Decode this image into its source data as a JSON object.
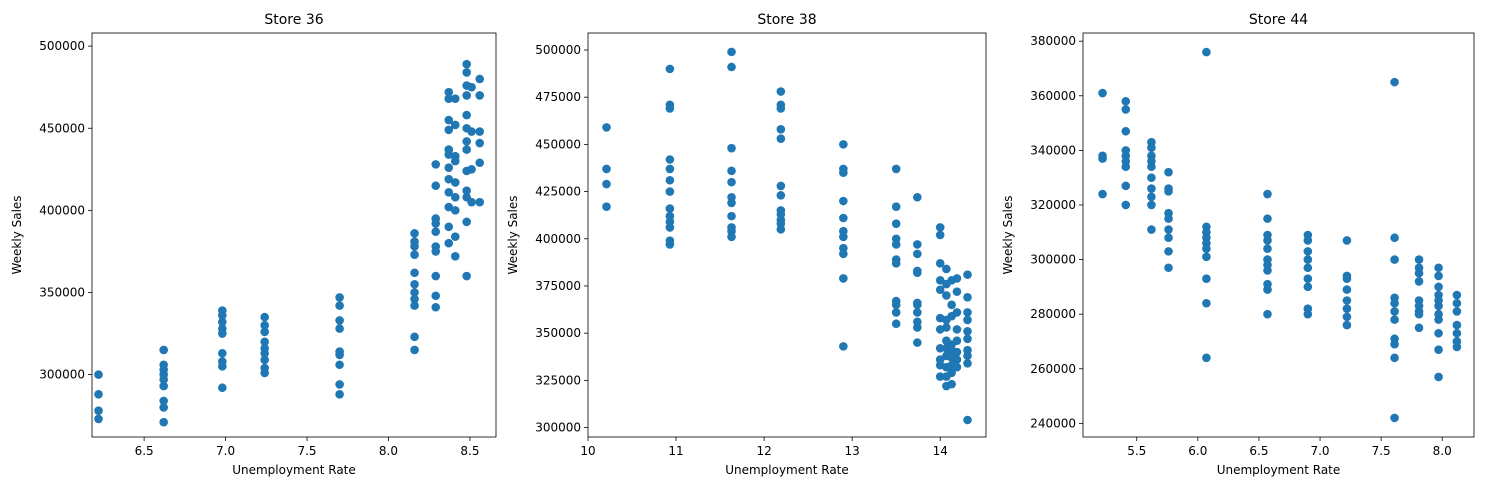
{
  "chart_data": [
    {
      "type": "scatter",
      "title": "Store 36",
      "xlabel": "Unemployment Rate",
      "ylabel": "Weekly Sales",
      "xlim": [
        6.18,
        8.66
      ],
      "ylim": [
        262000,
        508000
      ],
      "xticks": [
        6.5,
        7.0,
        7.5,
        8.0,
        8.5
      ],
      "xtick_labels": [
        "6.5",
        "7.0",
        "7.5",
        "8.0",
        "8.5"
      ],
      "yticks": [
        300000,
        350000,
        400000,
        450000,
        500000
      ],
      "ytick_labels": [
        "300000",
        "350000",
        "400000",
        "450000",
        "500000"
      ],
      "color": "#1f77b4",
      "groups": [
        {
          "x": 6.22,
          "y": [
            300000,
            288000,
            278000,
            273000
          ]
        },
        {
          "x": 6.62,
          "y": [
            315000,
            306000,
            303000,
            300000,
            297000,
            293000,
            284000,
            280000,
            271000
          ]
        },
        {
          "x": 6.98,
          "y": [
            339000,
            336000,
            332000,
            328000,
            325000,
            313000,
            308000,
            305000,
            292000
          ]
        },
        {
          "x": 7.24,
          "y": [
            335000,
            330000,
            326000,
            320000,
            316000,
            313000,
            309000,
            304000,
            301000
          ]
        },
        {
          "x": 7.7,
          "y": [
            347000,
            342000,
            333000,
            328000,
            314000,
            312000,
            306000,
            294000,
            288000
          ]
        },
        {
          "x": 8.16,
          "y": [
            386000,
            381000,
            378000,
            373000,
            362000,
            355000,
            350000,
            346000,
            342000,
            323000,
            315000
          ]
        },
        {
          "x": 8.29,
          "y": [
            428000,
            415000,
            395000,
            392000,
            387000,
            378000,
            375000,
            360000,
            348000,
            341000
          ]
        },
        {
          "x": 8.37,
          "y": [
            472000,
            468000,
            455000,
            449000,
            437000,
            434000,
            426000,
            419000,
            411000,
            402000,
            390000,
            380000
          ]
        },
        {
          "x": 8.41,
          "y": [
            468000,
            452000,
            433000,
            430000,
            417000,
            408000,
            400000,
            384000,
            372000
          ]
        },
        {
          "x": 8.48,
          "y": [
            489000,
            484000,
            476000,
            470000,
            458000,
            450000,
            442000,
            437000,
            424000,
            412000,
            408000,
            393000,
            360000
          ]
        },
        {
          "x": 8.51,
          "y": [
            475000,
            448000,
            425000,
            405000
          ]
        },
        {
          "x": 8.56,
          "y": [
            480000,
            470000,
            448000,
            441000,
            429000,
            405000
          ]
        }
      ]
    },
    {
      "type": "scatter",
      "title": "Store 38",
      "xlabel": "Unemployment Rate",
      "ylabel": "Weekly Sales",
      "xlim": [
        10.0,
        14.52
      ],
      "ylim": [
        295000,
        509000
      ],
      "xticks": [
        10,
        11,
        12,
        13,
        14
      ],
      "xtick_labels": [
        "10",
        "11",
        "12",
        "13",
        "14"
      ],
      "yticks": [
        300000,
        325000,
        350000,
        375000,
        400000,
        425000,
        450000,
        475000,
        500000
      ],
      "ytick_labels": [
        "300000",
        "325000",
        "350000",
        "375000",
        "400000",
        "425000",
        "450000",
        "475000",
        "500000"
      ],
      "color": "#1f77b4",
      "groups": [
        {
          "x": 10.21,
          "y": [
            459000,
            437000,
            429000,
            417000
          ]
        },
        {
          "x": 10.93,
          "y": [
            490000,
            471000,
            469000,
            442000,
            437000,
            431000,
            425000,
            416000,
            412000,
            409000,
            406000,
            399000,
            397000
          ]
        },
        {
          "x": 11.63,
          "y": [
            499000,
            491000,
            448000,
            436000,
            430000,
            422000,
            419000,
            412000,
            406000,
            404000,
            401000
          ]
        },
        {
          "x": 12.19,
          "y": [
            478000,
            471000,
            469000,
            458000,
            453000,
            428000,
            423000,
            415000,
            413000,
            410000,
            408000,
            405000
          ]
        },
        {
          "x": 12.9,
          "y": [
            450000,
            437000,
            435000,
            420000,
            411000,
            404000,
            401000,
            395000,
            392000,
            379000,
            343000
          ]
        },
        {
          "x": 13.5,
          "y": [
            437000,
            417000,
            408000,
            400000,
            397000,
            389000,
            387000,
            367000,
            365000,
            361000,
            355000
          ]
        },
        {
          "x": 13.74,
          "y": [
            422000,
            397000,
            392000,
            383000,
            382000,
            366000,
            365000,
            361000,
            356000,
            353000,
            345000
          ]
        },
        {
          "x": 14.0,
          "y": [
            406000,
            402000,
            387000,
            378000,
            373000,
            358000,
            352000,
            342000,
            336000,
            333000,
            327000
          ]
        },
        {
          "x": 14.07,
          "y": [
            384000,
            376000,
            370000,
            357000,
            353000,
            346000,
            342000,
            338000,
            332000,
            327000,
            322000
          ]
        },
        {
          "x": 14.13,
          "y": [
            378000,
            365000,
            359000,
            344000,
            341000,
            337000,
            333000,
            329000,
            323000
          ]
        },
        {
          "x": 14.19,
          "y": [
            379000,
            372000,
            361000,
            352000,
            346000,
            340000,
            336000,
            332000
          ]
        },
        {
          "x": 14.31,
          "y": [
            381000,
            369000,
            361000,
            357000,
            351000,
            347000,
            341000,
            338000,
            334000,
            304000
          ]
        }
      ]
    },
    {
      "type": "scatter",
      "title": "Store 44",
      "xlabel": "Unemployment Rate",
      "ylabel": "Weekly Sales",
      "xlim": [
        5.06,
        8.26
      ],
      "ylim": [
        235000,
        383000
      ],
      "xticks": [
        5.5,
        6.0,
        6.5,
        7.0,
        7.5,
        8.0
      ],
      "xtick_labels": [
        "5.5",
        "6.0",
        "6.5",
        "7.0",
        "7.5",
        "8.0"
      ],
      "yticks": [
        240000,
        260000,
        280000,
        300000,
        320000,
        340000,
        360000,
        380000
      ],
      "ytick_labels": [
        "240000",
        "260000",
        "280000",
        "300000",
        "320000",
        "340000",
        "360000",
        "380000"
      ],
      "color": "#1f77b4",
      "groups": [
        {
          "x": 5.22,
          "y": [
            361000,
            338000,
            337000,
            324000
          ]
        },
        {
          "x": 5.41,
          "y": [
            358000,
            355000,
            347000,
            340000,
            338000,
            336000,
            334000,
            327000,
            320000
          ]
        },
        {
          "x": 5.62,
          "y": [
            343000,
            341000,
            338000,
            336000,
            334000,
            330000,
            326000,
            323000,
            320000,
            311000
          ]
        },
        {
          "x": 5.76,
          "y": [
            332000,
            326000,
            325000,
            317000,
            315000,
            311000,
            308000,
            303000,
            297000
          ]
        },
        {
          "x": 6.07,
          "y": [
            376000,
            312000,
            310000,
            308000,
            306000,
            304000,
            301000,
            293000,
            284000,
            264000
          ]
        },
        {
          "x": 6.57,
          "y": [
            324000,
            315000,
            309000,
            307000,
            304000,
            300000,
            298000,
            296000,
            291000,
            289000,
            280000
          ]
        },
        {
          "x": 6.9,
          "y": [
            309000,
            307000,
            303000,
            300000,
            297000,
            293000,
            290000,
            282000,
            280000
          ]
        },
        {
          "x": 7.22,
          "y": [
            307000,
            294000,
            293000,
            289000,
            285000,
            282000,
            279000,
            276000
          ]
        },
        {
          "x": 7.61,
          "y": [
            365000,
            308000,
            300000,
            286000,
            284000,
            281000,
            278000,
            271000,
            269000,
            264000,
            242000
          ]
        },
        {
          "x": 7.81,
          "y": [
            300000,
            297000,
            295000,
            292000,
            285000,
            283000,
            281000,
            280000,
            275000
          ]
        },
        {
          "x": 7.97,
          "y": [
            297000,
            294000,
            290000,
            287000,
            285000,
            283000,
            280000,
            278000,
            273000,
            267000,
            257000
          ]
        },
        {
          "x": 8.12,
          "y": [
            287000,
            284000,
            281000,
            276000,
            273000,
            270000,
            268000
          ]
        }
      ]
    }
  ]
}
